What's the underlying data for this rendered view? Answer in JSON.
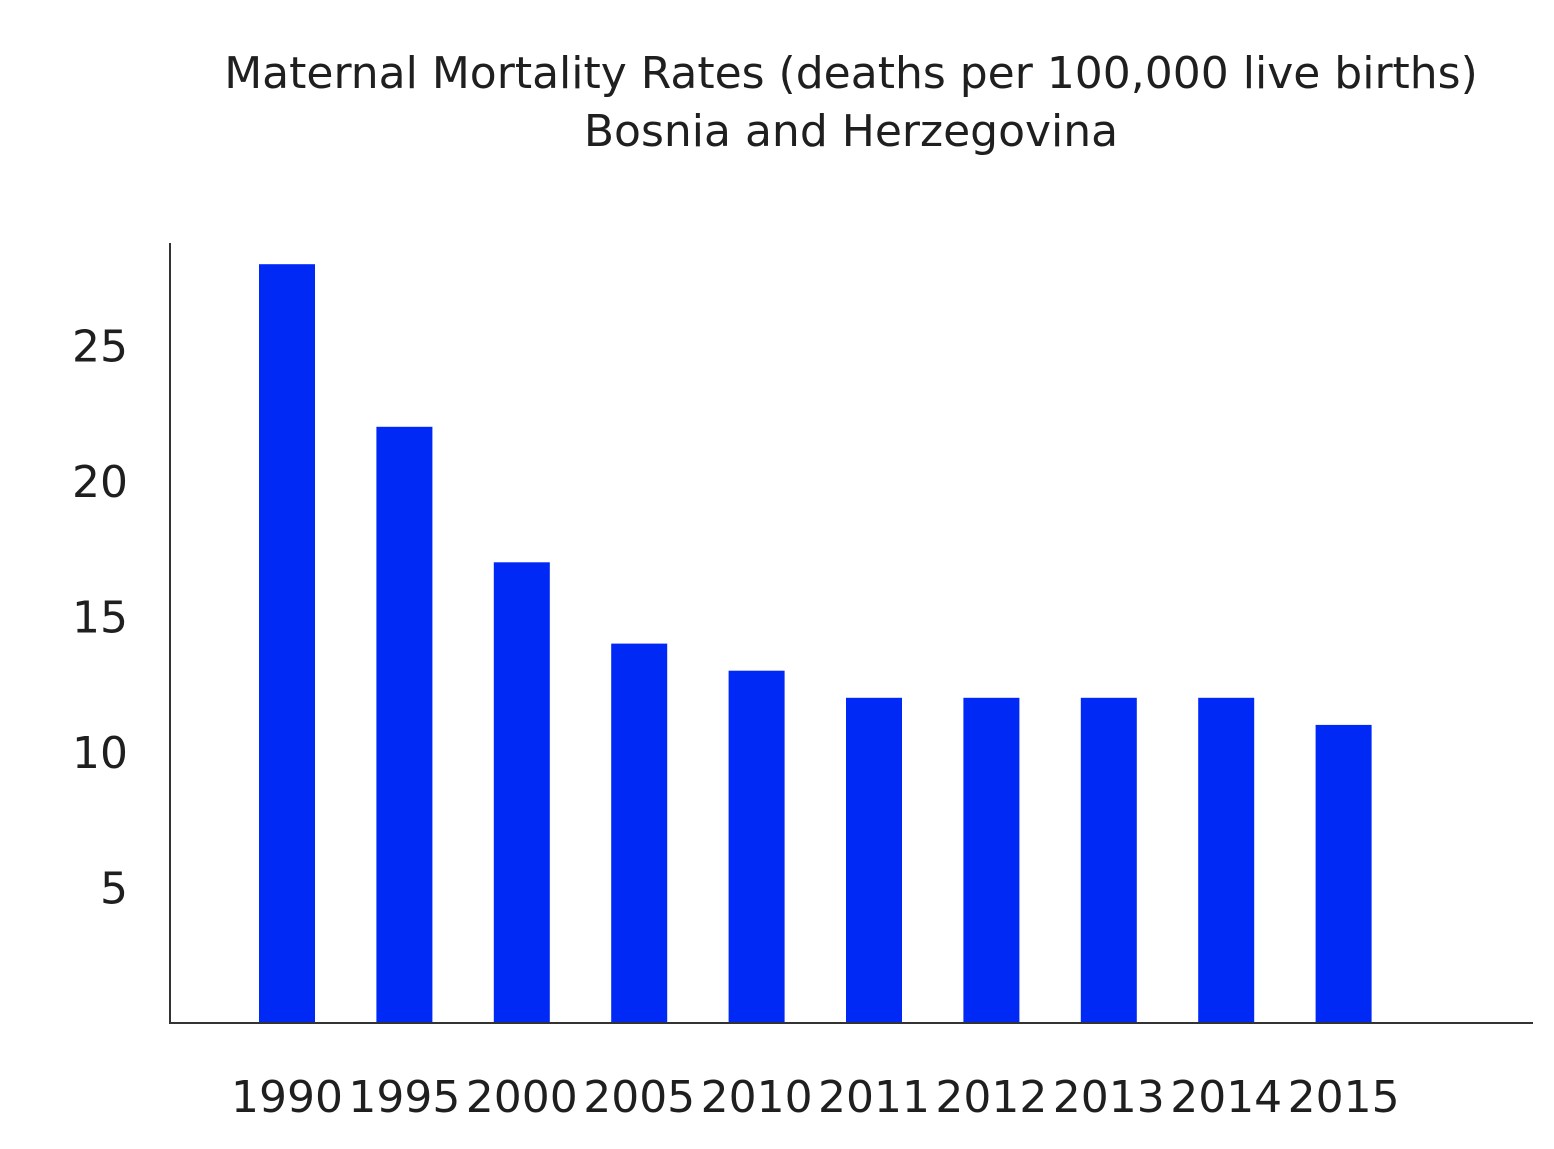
{
  "chart_data": {
    "type": "bar",
    "title": "Maternal Mortality Rates (deaths per 100,000 live births)",
    "subtitle": "Bosnia and Herzegovina",
    "xlabel": "",
    "ylabel": "",
    "categories": [
      "1990",
      "1995",
      "2000",
      "2005",
      "2010",
      "2011",
      "2012",
      "2013",
      "2014",
      "2015"
    ],
    "values": [
      28,
      22,
      17,
      14,
      13,
      12,
      12,
      12,
      12,
      11
    ],
    "yticks": [
      5,
      10,
      15,
      20,
      25
    ],
    "ylim": [
      0,
      28.75
    ],
    "grid": false,
    "legend": "none",
    "bar_color": "#0029f5"
  }
}
